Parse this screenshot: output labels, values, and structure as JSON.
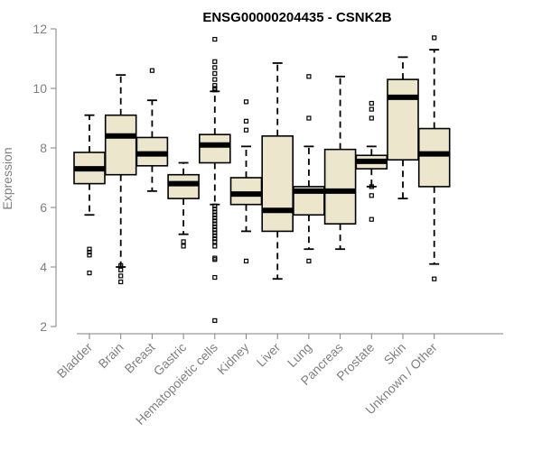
{
  "chart_data": {
    "type": "box",
    "title": "ENSG00000204435 - CSNK2B",
    "xlabel": "",
    "ylabel": "Expression",
    "ylim": [
      2,
      12
    ],
    "yticks": [
      2,
      4,
      6,
      8,
      10,
      12
    ],
    "box_fill": "#ece6cc",
    "grid": false,
    "categories": [
      "Bladder",
      "Brain",
      "Breast",
      "Gastric",
      "Hematopoietic cells",
      "Kidney",
      "Liver",
      "Lung",
      "Pancreas",
      "Prostate",
      "Skin",
      "Unknown / Other"
    ],
    "boxes": [
      {
        "category": "Bladder",
        "min": 5.75,
        "q1": 6.8,
        "median": 7.3,
        "q3": 7.85,
        "max": 9.1,
        "outliers": [
          4.6,
          4.5,
          4.4,
          3.8
        ]
      },
      {
        "category": "Brain",
        "min": 4.0,
        "q1": 7.1,
        "median": 8.4,
        "q3": 9.1,
        "max": 10.45,
        "outliers": [
          4.05,
          3.9,
          3.7,
          3.5
        ]
      },
      {
        "category": "Breast",
        "min": 6.55,
        "q1": 7.4,
        "median": 7.8,
        "q3": 8.35,
        "max": 9.6,
        "outliers": [
          10.6
        ]
      },
      {
        "category": "Gastric",
        "min": 5.1,
        "q1": 6.3,
        "median": 6.8,
        "q3": 7.1,
        "max": 7.5,
        "outliers": [
          4.85,
          4.7
        ]
      },
      {
        "category": "Hematopoietic cells",
        "min": 6.1,
        "q1": 7.5,
        "median": 8.1,
        "q3": 8.45,
        "max": 9.9,
        "outliers": [
          11.65,
          10.9,
          10.7,
          10.5,
          10.3,
          10.1,
          10.0,
          9.95,
          6.05,
          5.95,
          5.85,
          5.75,
          5.65,
          5.55,
          5.45,
          5.35,
          5.25,
          5.15,
          5.05,
          4.95,
          4.85,
          4.7,
          4.3,
          4.25,
          3.65,
          2.2
        ]
      },
      {
        "category": "Kidney",
        "min": 5.2,
        "q1": 6.1,
        "median": 6.45,
        "q3": 7.0,
        "max": 8.05,
        "outliers": [
          9.55,
          8.9,
          8.6,
          4.2
        ]
      },
      {
        "category": "Liver",
        "min": 3.6,
        "q1": 5.2,
        "median": 5.9,
        "q3": 8.4,
        "max": 10.85,
        "outliers": []
      },
      {
        "category": "Lung",
        "min": 4.6,
        "q1": 5.75,
        "median": 6.55,
        "q3": 6.7,
        "max": 8.05,
        "outliers": [
          10.4,
          9.0,
          4.2
        ]
      },
      {
        "category": "Pancreas",
        "min": 4.6,
        "q1": 5.45,
        "median": 6.55,
        "q3": 7.95,
        "max": 10.4,
        "outliers": []
      },
      {
        "category": "Prostate",
        "min": 6.7,
        "q1": 7.3,
        "median": 7.55,
        "q3": 7.75,
        "max": 8.05,
        "outliers": [
          9.5,
          9.3,
          9.0,
          6.7,
          6.4,
          5.6
        ]
      },
      {
        "category": "Skin",
        "min": 6.3,
        "q1": 7.6,
        "median": 9.7,
        "q3": 10.3,
        "max": 11.05,
        "outliers": []
      },
      {
        "category": "Unknown / Other",
        "min": 4.1,
        "q1": 6.7,
        "median": 7.8,
        "q3": 8.65,
        "max": 11.3,
        "outliers": [
          11.7,
          3.6
        ]
      }
    ]
  }
}
